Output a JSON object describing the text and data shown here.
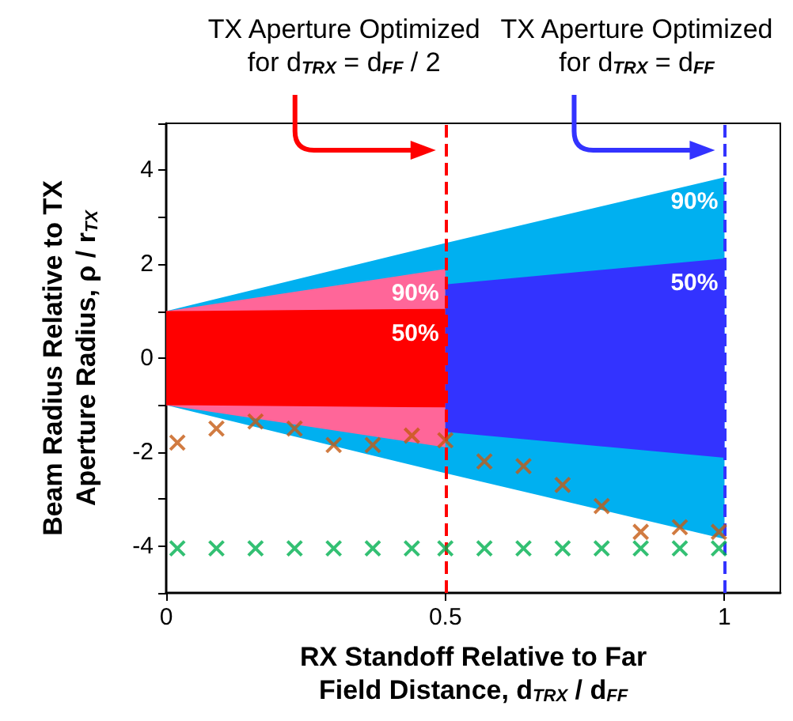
{
  "chart_data": {
    "type": "area",
    "xlabel": "RX Standoff Relative to Far Field Distance, d$_{TRX}$ / d$_{FF}$",
    "ylabel": "Beam Radius Relative to TX Aperture Radius, ρ / r$_{TX}$",
    "xlim": [
      0,
      1.1
    ],
    "xticks": [
      0,
      0.5,
      1
    ],
    "ylim": [
      -5,
      5
    ],
    "yticks": [
      {
        "value": -5,
        "label": null
      },
      -4,
      {
        "value": -3,
        "label": null
      },
      -2,
      {
        "value": -1,
        "label": null
      },
      0,
      {
        "value": 1,
        "label": null
      },
      2,
      {
        "value": 3,
        "label": null
      },
      4,
      {
        "value": 5,
        "label": null
      }
    ],
    "grid": false,
    "series": [
      {
        "name": "90%",
        "color": "#00b0f0",
        "x": [
          0,
          0.5,
          1
        ],
        "values": [
          1,
          2.45,
          3.85
        ]
      },
      {
        "color": "#00b0f0",
        "x": [
          0,
          0.5,
          1
        ],
        "values": [
          -1,
          -2.45,
          -3.85
        ]
      },
      {
        "name": "90%",
        "color": "#ff6699",
        "x": [
          0,
          0.5
        ],
        "values": [
          1,
          1.9
        ]
      },
      {
        "color": "#ff6699",
        "x": [
          0,
          0.5
        ],
        "values": [
          -1,
          -1.9
        ]
      },
      {
        "name": "50%",
        "color": "#ff0000",
        "x": [
          0,
          0.5
        ],
        "values": [
          1,
          1.05
        ]
      },
      {
        "color": "#ff0000",
        "x": [
          0,
          0.5
        ],
        "values": [
          -1,
          -1.05
        ]
      },
      {
        "name": "50%",
        "color": "#3333ff",
        "x": [
          0.5,
          1
        ],
        "values": [
          1.57,
          2.12
        ]
      },
      {
        "color": "#3333ff",
        "x": [
          0.5,
          1
        ],
        "values": [
          -1.57,
          -2.12
        ]
      },
      {
        "type": "scatter",
        "marker": "cross",
        "color": "#c55a11",
        "x": [
          0.02,
          0.09,
          0.16,
          0.23,
          0.3,
          0.37,
          0.44,
          0.5,
          0.57,
          0.64,
          0.71,
          0.78,
          0.85,
          0.92,
          0.99
        ],
        "values": [
          -1.8,
          -1.5,
          -1.35,
          -1.5,
          -1.85,
          -1.85,
          -1.65,
          -1.75,
          -2.2,
          -2.3,
          -2.7,
          -3.15,
          -3.7,
          -3.6,
          -3.7
        ]
      },
      {
        "type": "scatter",
        "marker": "cross",
        "color": "#00b050",
        "x": [
          0.02,
          0.09,
          0.16,
          0.23,
          0.3,
          0.37,
          0.44,
          0.5,
          0.57,
          0.64,
          0.71,
          0.78,
          0.85,
          0.92,
          0.99
        ],
        "values": [
          -4.05,
          -4.05,
          -4.05,
          -4.05,
          -4.05,
          -4.05,
          -4.05,
          -4.05,
          -4.05,
          -4.05,
          -4.05,
          -4.05,
          -4.05,
          -4.05,
          -4.05
        ]
      }
    ],
    "ref_lines": [
      {
        "axis": "x",
        "value": 0.5,
        "label": "TX Aperture Optimized for d$_{TRX}$ = d$_{FF}$ / 2",
        "color": "#ff0000",
        "line_style": "dashed"
      },
      {
        "axis": "x",
        "value": 1,
        "label": "TX Aperture Optimized for d$_{TRX}$ = d$_{FF}$",
        "color": "#3333ff",
        "line_style": "dashed"
      }
    ]
  }
}
